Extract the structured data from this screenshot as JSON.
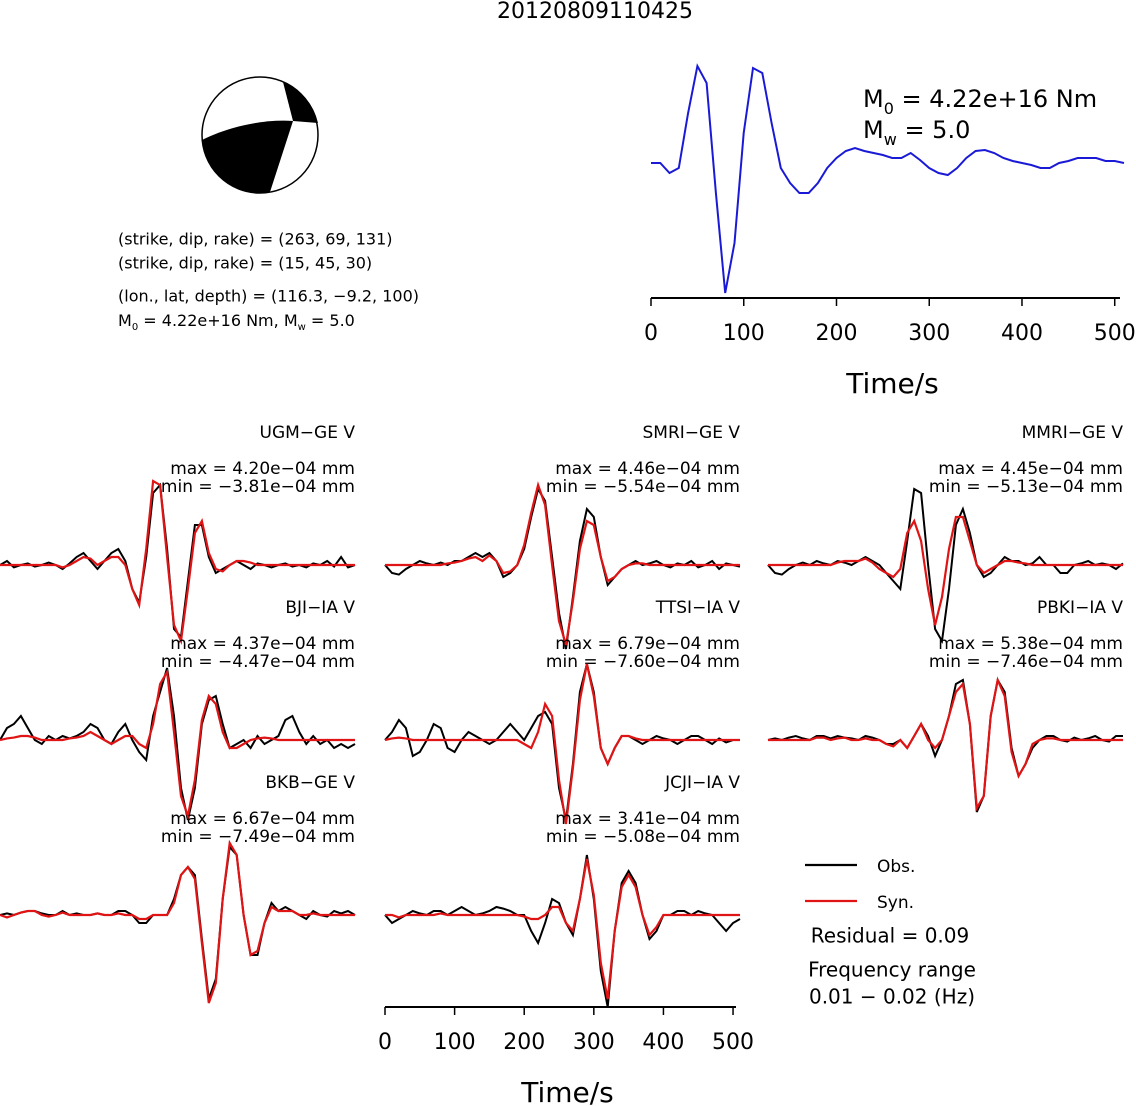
{
  "title": "20120809110425",
  "mechanism": {
    "planes": [
      "(strike, dip, rake) = (263, 69, 131)",
      "(strike, dip, rake) = (15, 45, 30)"
    ],
    "location": "(lon., lat, depth) = (116.3, −9.2, 100)",
    "moment": [
      "M",
      "0",
      " = 4.22e+16 Nm, M",
      "w",
      " = 5.0"
    ]
  },
  "chart_data": {
    "type": "line",
    "xlim": [
      0,
      510
    ],
    "xticks": [
      0,
      100,
      200,
      300,
      400,
      500
    ],
    "xlabel": "Time/s",
    "x": [
      0,
      10,
      20,
      30,
      40,
      50,
      60,
      70,
      80,
      90,
      100,
      110,
      120,
      130,
      140,
      150,
      160,
      170,
      180,
      190,
      200,
      210,
      220,
      230,
      240,
      250,
      260,
      270,
      280,
      290,
      300,
      310,
      320,
      330,
      340,
      350,
      360,
      370,
      380,
      390,
      400,
      410,
      420,
      430,
      440,
      450,
      460,
      470,
      480,
      490,
      500,
      510
    ],
    "source_time_function": {
      "color": "#1a1ad6",
      "labels": [
        [
          "M",
          "0",
          " = 4.22e+16 Nm"
        ],
        [
          "M",
          "w",
          " = 5.0"
        ]
      ],
      "values": [
        0,
        0,
        -0.1,
        -0.05,
        0.5,
        0.97,
        0.8,
        -0.3,
        -1.3,
        -0.8,
        0.3,
        0.95,
        0.9,
        0.4,
        -0.05,
        -0.2,
        -0.3,
        -0.3,
        -0.2,
        -0.05,
        0.05,
        0.12,
        0.15,
        0.12,
        0.1,
        0.08,
        0.05,
        0.05,
        0.1,
        0.03,
        -0.05,
        -0.1,
        -0.12,
        -0.05,
        0.05,
        0.12,
        0.13,
        0.1,
        0.05,
        0.02,
        0,
        -0.02,
        -0.05,
        -0.05,
        0,
        0.02,
        0.05,
        0.05,
        0.05,
        0.02,
        0.02,
        0
      ]
    },
    "legend": [
      {
        "name": "Obs.",
        "color": "#000000"
      },
      {
        "name": "Syn.",
        "color": "#e01414"
      }
    ],
    "residual": "Residual = 0.09",
    "frequency_title": "Frequency range",
    "frequency_range": "0.01 − 0.02 (Hz)",
    "stations": [
      {
        "label": "UGM−GE V",
        "max_label": "max = 4.20e−04 mm",
        "min_label": "min = −3.81e−04 mm",
        "obs": [
          0,
          0.05,
          -0.03,
          0,
          0.02,
          -0.02,
          0,
          0.03,
          0,
          -0.05,
          0.02,
          0.1,
          0.15,
          0.05,
          -0.05,
          0.05,
          0.15,
          0.2,
          0.05,
          -0.3,
          -0.47,
          0.1,
          0.9,
          1.0,
          0.2,
          -0.8,
          -0.9,
          -0.2,
          0.5,
          0.5,
          0.1,
          -0.1,
          -0.05,
          0,
          0.05,
          0,
          -0.05,
          0.02,
          0,
          -0.03,
          0,
          0.02,
          -0.02,
          0,
          -0.03,
          0.02,
          0,
          0.05,
          -0.02,
          0.1,
          -0.03,
          0
        ],
        "syn": [
          0,
          0,
          0,
          0,
          0,
          0,
          0,
          0,
          0,
          -0.03,
          0,
          0.05,
          0.1,
          0.08,
          0,
          0.05,
          0.1,
          0.1,
          0,
          -0.3,
          -0.5,
          0.2,
          1.05,
          1.0,
          0.1,
          -0.75,
          -0.95,
          -0.3,
          0.4,
          0.55,
          0.15,
          -0.05,
          -0.08,
          0,
          0.05,
          0.05,
          0.03,
          0,
          0,
          0,
          0,
          0,
          0,
          0,
          0,
          0,
          0,
          0,
          0,
          0,
          0,
          0
        ]
      },
      {
        "label": "SMRI−GE V",
        "max_label": "max = 4.46e−04 mm",
        "min_label": "min = −5.54e−04 mm",
        "obs": [
          0,
          -0.1,
          -0.12,
          -0.05,
          0,
          0.05,
          0.02,
          0,
          0.03,
          0,
          0.05,
          0.05,
          0.1,
          0.15,
          0.1,
          0.15,
          0.05,
          -0.15,
          -0.1,
          0,
          0.2,
          0.6,
          0.95,
          0.8,
          0.1,
          -0.6,
          -1.05,
          -0.4,
          0.3,
          0.7,
          0.6,
          0.1,
          -0.25,
          -0.15,
          -0.05,
          0,
          0.05,
          0,
          0.02,
          0.05,
          0,
          -0.03,
          0.02,
          0,
          0.05,
          -0.03,
          0,
          0.05,
          -0.05,
          0.02,
          0,
          -0.02
        ],
        "syn": [
          0,
          0,
          0,
          0,
          0,
          0,
          0,
          0,
          0,
          0.02,
          0.03,
          0.05,
          0.08,
          0.1,
          0.05,
          0.12,
          0.05,
          -0.1,
          -0.08,
          0,
          0.25,
          0.65,
          1.0,
          0.75,
          0,
          -0.7,
          -1.0,
          -0.45,
          0.2,
          0.55,
          0.5,
          0.1,
          -0.2,
          -0.15,
          -0.05,
          0,
          0.02,
          0.02,
          0,
          0,
          0,
          0,
          0,
          0,
          0,
          0,
          0,
          0,
          0,
          0,
          0,
          0
        ]
      },
      {
        "label": "MMRI−GE V",
        "max_label": "max = 4.45e−04 mm",
        "min_label": "min = −5.13e−04 mm",
        "obs": [
          0,
          -0.1,
          -0.12,
          -0.05,
          0,
          0.03,
          0,
          0.05,
          0.02,
          0,
          0.05,
          0.03,
          0,
          0.05,
          0.1,
          0.05,
          0,
          -0.1,
          -0.2,
          -0.3,
          0.3,
          0.95,
          0.9,
          0,
          -0.8,
          -0.95,
          -0.3,
          0.5,
          0.7,
          0.4,
          0,
          -0.15,
          -0.1,
          0,
          0.1,
          0.05,
          0.05,
          0,
          0.02,
          0.1,
          0,
          0,
          -0.1,
          -0.1,
          0,
          0.02,
          0.05,
          0,
          0.02,
          0,
          -0.05,
          0.02
        ],
        "syn": [
          0,
          0,
          0,
          0,
          0,
          0,
          0,
          0,
          0,
          0,
          0.03,
          0.05,
          0.05,
          0.05,
          0.08,
          0.03,
          -0.05,
          -0.1,
          -0.15,
          -0.05,
          0.4,
          0.55,
          0.3,
          -0.3,
          -0.75,
          -0.4,
          0.2,
          0.6,
          0.6,
          0.3,
          0,
          -0.1,
          -0.05,
          0,
          0.05,
          0.05,
          0.03,
          0.02,
          0,
          0,
          0,
          0,
          0,
          0,
          0,
          0,
          0,
          0,
          0,
          0,
          0,
          0
        ]
      },
      {
        "label": "BJI−IA V",
        "max_label": "max = 4.37e−04 mm",
        "min_label": "min = −4.47e−04 mm",
        "obs": [
          0,
          0.15,
          0.2,
          0.3,
          0.15,
          0,
          -0.05,
          0.05,
          0,
          0.05,
          0.02,
          0.05,
          0.1,
          0.2,
          0.15,
          0,
          -0.05,
          0.1,
          0.2,
          0,
          -0.15,
          -0.25,
          0.3,
          0.6,
          0.9,
          0.3,
          -0.6,
          -1.0,
          -0.6,
          0.2,
          0.5,
          0.55,
          0.2,
          -0.1,
          -0.05,
          0,
          -0.1,
          0.05,
          -0.05,
          0,
          0.05,
          0.25,
          0.3,
          0.1,
          -0.05,
          0.05,
          -0.05,
          0,
          -0.1,
          -0.05,
          -0.1,
          -0.05
        ],
        "syn": [
          0,
          0.02,
          0.03,
          0.05,
          0.05,
          0.03,
          0,
          0,
          0,
          0,
          0.02,
          0.03,
          0.05,
          0.1,
          0.05,
          0,
          -0.05,
          0,
          0.05,
          0.05,
          -0.05,
          -0.1,
          0.2,
          0.7,
          0.85,
          0.1,
          -0.7,
          -0.95,
          -0.5,
          0.25,
          0.55,
          0.45,
          0.1,
          -0.1,
          -0.1,
          -0.05,
          0,
          0.02,
          0.03,
          0.02,
          0,
          0,
          0,
          0,
          0,
          0,
          0,
          0,
          0,
          0,
          0,
          0
        ]
      },
      {
        "label": "TTSI−IA V",
        "max_label": "max = 6.79e−04 mm",
        "min_label": "min = −7.60e−04 mm",
        "obs": [
          0,
          0.1,
          0.25,
          0.15,
          -0.2,
          -0.15,
          0,
          0.2,
          0.15,
          -0.1,
          -0.15,
          0,
          0.1,
          0.05,
          0,
          -0.05,
          0,
          0.1,
          0.2,
          0.1,
          0,
          0.15,
          0.3,
          0.35,
          0.2,
          -0.6,
          -1.0,
          -0.3,
          0.6,
          0.95,
          0.6,
          -0.1,
          -0.3,
          -0.1,
          0.05,
          0.05,
          0,
          -0.05,
          0,
          0.05,
          0.02,
          0,
          -0.05,
          0,
          0.05,
          0.05,
          0,
          -0.05,
          0.02,
          -0.03,
          0,
          0
        ],
        "syn": [
          0,
          0.02,
          0.03,
          0.02,
          0,
          0,
          0,
          0,
          0,
          0,
          0,
          0,
          0,
          0,
          0,
          0,
          0,
          0,
          0,
          0,
          -0.05,
          -0.1,
          0.1,
          0.45,
          0.3,
          -0.5,
          -1.05,
          -0.35,
          0.5,
          0.95,
          0.55,
          -0.1,
          -0.3,
          -0.1,
          0.05,
          0.05,
          0.02,
          0,
          0,
          0,
          0,
          0,
          0,
          0,
          0,
          0,
          0,
          0,
          0,
          0,
          0,
          0
        ]
      },
      {
        "label": "PBKI−IA V",
        "max_label": "max = 5.38e−04 mm",
        "min_label": "min = −7.46e−04 mm",
        "obs": [
          0,
          0.02,
          0,
          0.03,
          0.05,
          0.02,
          0,
          0.05,
          0.05,
          0.02,
          0.05,
          0.03,
          0.02,
          0,
          0.05,
          0.03,
          0,
          -0.05,
          -0.05,
          0,
          -0.1,
          0.05,
          0.2,
          0.05,
          -0.2,
          0,
          0.3,
          0.7,
          0.75,
          0.2,
          -0.9,
          -0.7,
          0.3,
          0.75,
          0.6,
          -0.1,
          -0.45,
          -0.3,
          -0.1,
          0,
          0.05,
          0.05,
          0,
          -0.02,
          0.03,
          0,
          0.02,
          0.05,
          0,
          -0.02,
          0.05,
          0.05
        ],
        "syn": [
          0,
          0,
          0,
          0,
          0,
          0,
          0,
          0.03,
          0.03,
          0,
          0.02,
          0.03,
          0,
          0,
          0.02,
          0,
          0,
          -0.05,
          -0.08,
          0,
          -0.1,
          0.05,
          0.2,
          0,
          -0.1,
          0,
          0.3,
          0.6,
          0.7,
          0.2,
          -0.85,
          -0.7,
          0.3,
          0.75,
          0.55,
          -0.15,
          -0.45,
          -0.3,
          -0.05,
          0,
          0.02,
          0.02,
          0,
          0,
          0,
          0,
          0,
          0,
          0,
          0,
          0,
          0
        ]
      },
      {
        "label": "BKB−GE V",
        "max_label": "max = 6.67e−04 mm",
        "min_label": "min = −7.49e−04 mm",
        "obs": [
          0,
          0.02,
          0,
          0.03,
          0.05,
          0.05,
          0.02,
          0,
          0,
          0.05,
          0,
          0.02,
          0,
          0,
          0.02,
          0,
          0,
          0.05,
          0.05,
          0,
          -0.1,
          -0.1,
          0,
          0,
          0,
          0.2,
          0.5,
          0.6,
          0.5,
          -0.3,
          -1.05,
          -0.8,
          0.2,
          0.85,
          0.75,
          0,
          -0.5,
          -0.5,
          -0.1,
          0.15,
          0.05,
          0.1,
          0.05,
          0,
          -0.05,
          0.05,
          0,
          -0.02,
          0.05,
          0.02,
          0.05,
          0
        ],
        "syn": [
          0,
          -0.03,
          0,
          0.03,
          0.05,
          0.05,
          0,
          -0.02,
          0,
          0.03,
          0,
          0,
          0,
          0,
          0.02,
          0,
          0,
          0.02,
          0,
          0,
          -0.05,
          -0.05,
          0,
          0,
          0,
          0.15,
          0.5,
          0.6,
          0.45,
          -0.35,
          -1.1,
          -0.85,
          0.2,
          0.9,
          0.75,
          0,
          -0.5,
          -0.45,
          -0.1,
          0.1,
          0.05,
          0.05,
          0.05,
          0,
          0,
          0.02,
          0,
          0,
          0,
          0,
          0,
          0
        ]
      },
      {
        "label": "JCJI−IA V",
        "max_label": "max = 3.41e−04 mm",
        "min_label": "min = −5.08e−04 mm",
        "obs": [
          0,
          -0.1,
          -0.05,
          0,
          0.05,
          0.02,
          0,
          0.05,
          0.05,
          0,
          0.05,
          0.1,
          0.05,
          0,
          0.02,
          0.05,
          0.1,
          0.08,
          0.05,
          0,
          0,
          -0.2,
          -0.35,
          -0.1,
          0.2,
          0.15,
          -0.1,
          -0.25,
          0.2,
          0.75,
          0.2,
          -0.7,
          -1.15,
          -0.2,
          0.4,
          0.55,
          0.4,
          0,
          -0.3,
          -0.2,
          0,
          0,
          0.05,
          0.05,
          0,
          0.05,
          0.02,
          0,
          -0.1,
          -0.2,
          -0.1,
          -0.05
        ],
        "syn": [
          0,
          0,
          -0.03,
          0,
          0,
          0,
          0,
          0,
          0.02,
          0,
          0,
          0,
          0,
          0,
          0,
          0,
          0,
          0,
          0,
          0,
          -0.02,
          -0.05,
          -0.05,
          0,
          0.1,
          0.1,
          -0.1,
          -0.2,
          0.2,
          0.7,
          0.25,
          -0.6,
          -1.05,
          -0.2,
          0.35,
          0.5,
          0.35,
          0,
          -0.25,
          -0.15,
          0,
          0,
          0,
          0,
          0,
          0,
          0,
          0,
          0,
          0,
          0,
          0
        ]
      }
    ]
  }
}
